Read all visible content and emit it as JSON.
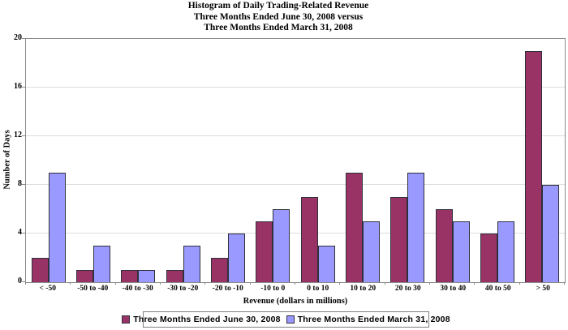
{
  "title": {
    "line1": "Histogram of Daily Trading-Related Revenue",
    "line2": "Three Months Ended June 30, 2008 versus",
    "line3": "Three Months Ended March 31, 2008"
  },
  "chart_data": {
    "type": "bar",
    "title": "Histogram of Daily Trading-Related Revenue — Three Months Ended June 30, 2008 versus Three Months Ended March 31, 2008",
    "categories": [
      "< -50",
      "-50 to -40",
      "-40 to -30",
      "-30 to -20",
      "-20 to -10",
      "-10 to 0",
      "0 to 10",
      "10 to 20",
      "20 to 30",
      "30 to 40",
      "40 to 50",
      "> 50"
    ],
    "series": [
      {
        "name": "Three Months Ended June 30, 2008",
        "color": "#993366",
        "values": [
          2,
          1,
          1,
          1,
          2,
          5,
          7,
          9,
          7,
          6,
          4,
          19
        ]
      },
      {
        "name": "Three Months Ended March 31, 2008",
        "color": "#9999FF",
        "values": [
          9,
          3,
          1,
          3,
          4,
          6,
          3,
          5,
          9,
          5,
          5,
          8
        ]
      }
    ],
    "xlabel": "Revenue (dollars in millions)",
    "ylabel": "Number of Days",
    "ylim": [
      0,
      20
    ],
    "yticks": [
      0,
      4,
      8,
      12,
      16,
      20
    ],
    "grid": true,
    "legend_position": "bottom"
  },
  "colors": {
    "axis_line": "#8a8a8a",
    "gridline": "#dddddd",
    "bar_border": "#30303c",
    "background": "#ffffff"
  }
}
